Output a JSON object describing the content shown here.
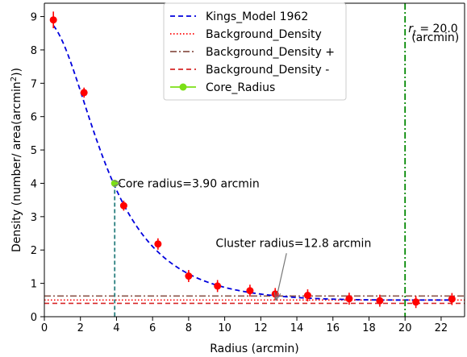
{
  "chart_data": {
    "type": "scatter",
    "xlabel": "Radius (arcmin)",
    "ylabel": "Density (number/ area(arcmin²))",
    "xlim": [
      0,
      23.3
    ],
    "ylim": [
      0,
      9.4
    ],
    "xticks": [
      "0",
      "2",
      "4",
      "6",
      "8",
      "10",
      "12",
      "14",
      "16",
      "18",
      "20",
      "22"
    ],
    "yticks": [
      "0",
      "1",
      "2",
      "3",
      "4",
      "5",
      "6",
      "7",
      "8",
      "9"
    ],
    "grid": false,
    "legend_position": "top-center",
    "series": [
      {
        "name": "Kings_Model 1962",
        "kind": "line",
        "style": "dashed",
        "color": "#0000dd",
        "model": {
          "background": 0.5,
          "central_density": 8.4,
          "core_radius": 3.9,
          "tidal_radius": 20.0
        }
      },
      {
        "name": "Background_Density",
        "kind": "hline",
        "style": "dotted",
        "color": "#ff0000",
        "y": 0.5
      },
      {
        "name": "Background_Density +",
        "kind": "hline",
        "style": "dashdot",
        "color": "#8c564b",
        "y": 0.62
      },
      {
        "name": "Background_Density -",
        "kind": "hline",
        "style": "dashed",
        "color": "#d62728",
        "y": 0.4
      },
      {
        "name": "Core_Radius",
        "kind": "point",
        "color": "#7be016",
        "x": 3.9,
        "y": 4.0
      }
    ],
    "observations": {
      "color": "#ff0000",
      "points": [
        {
          "x": 0.5,
          "y": 8.9,
          "err": 0.25
        },
        {
          "x": 2.2,
          "y": 6.72,
          "err": 0.15
        },
        {
          "x": 4.4,
          "y": 3.33,
          "err": 0.15
        },
        {
          "x": 6.3,
          "y": 2.18,
          "err": 0.17
        },
        {
          "x": 8.0,
          "y": 1.22,
          "err": 0.18
        },
        {
          "x": 9.6,
          "y": 0.92,
          "err": 0.18
        },
        {
          "x": 11.4,
          "y": 0.78,
          "err": 0.18
        },
        {
          "x": 12.8,
          "y": 0.68,
          "err": 0.18
        },
        {
          "x": 14.6,
          "y": 0.64,
          "err": 0.18
        },
        {
          "x": 16.9,
          "y": 0.54,
          "err": 0.18
        },
        {
          "x": 18.6,
          "y": 0.48,
          "err": 0.18
        },
        {
          "x": 20.6,
          "y": 0.44,
          "err": 0.18
        },
        {
          "x": 22.6,
          "y": 0.53,
          "err": 0.18
        }
      ]
    },
    "core_radius_marker": {
      "x": 3.9,
      "y": 4.0,
      "color": "#2a7f7f"
    },
    "tidal_radius_line": {
      "x": 20.0,
      "color": "#008800",
      "label": "$r_t$ = 20.0",
      "label_line2": "(arcmin)"
    },
    "annotations": [
      {
        "text": "Core radius=3.90 arcmin",
        "target_x": 3.9,
        "target_y": 4.0,
        "text_x": 8.0,
        "text_y": 4.0
      },
      {
        "text": "Cluster radius=12.8 arcmin",
        "target_x": 12.8,
        "target_y": 0.7,
        "text_x": 9.5,
        "text_y": 1.95
      }
    ]
  }
}
